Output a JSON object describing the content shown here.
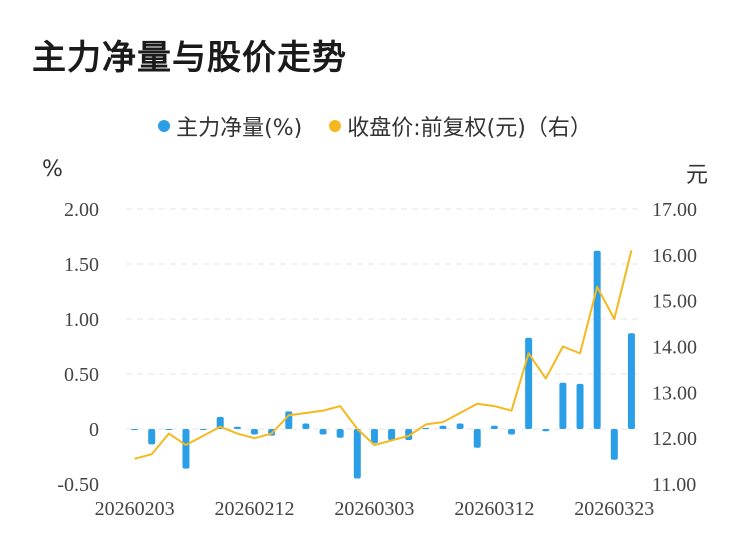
{
  "title": "主力净量与股价走势",
  "colors": {
    "bar": "#2b9ee8",
    "line": "#f5b81e",
    "grid": "#e4e4e4"
  },
  "chart_data": {
    "type": "bar+line",
    "legend": [
      {
        "name": "主力净量(%)",
        "color": "#2b9ee8",
        "marker": "dot"
      },
      {
        "name": "收盘价:前复权(元)（右）",
        "color": "#f5b81e",
        "marker": "dot"
      }
    ],
    "y_left_unit": "%",
    "y_right_unit": "元",
    "y_left": {
      "ticks": [
        "2.00",
        "1.50",
        "1.00",
        "0.50",
        "0",
        "-0.50"
      ],
      "range": [
        -0.5,
        2.0
      ]
    },
    "y_right": {
      "ticks": [
        "17.00",
        "16.00",
        "15.00",
        "14.00",
        "13.00",
        "12.00",
        "11.00"
      ],
      "range": [
        11.0,
        17.0
      ]
    },
    "x_ticks": [
      "20260203",
      "20260212",
      "20260303",
      "20260312",
      "20260323"
    ],
    "x_tick_index": [
      0,
      7,
      14,
      21,
      28
    ],
    "categories": [
      "d1",
      "d2",
      "d3",
      "d4",
      "d5",
      "d6",
      "d7",
      "d8",
      "d9",
      "d10",
      "d11",
      "d12",
      "d13",
      "d14",
      "d15",
      "d16",
      "d17",
      "d18",
      "d19",
      "d20",
      "d21",
      "d22",
      "d23",
      "d24",
      "d25",
      "d26",
      "d27",
      "d28",
      "d29",
      "d30"
    ],
    "series": [
      {
        "name": "主力净量(%)",
        "kind": "bar",
        "values": [
          -0.01,
          -0.14,
          0.0,
          -0.36,
          0.0,
          0.11,
          0.02,
          -0.05,
          -0.06,
          0.16,
          0.05,
          -0.05,
          -0.08,
          -0.45,
          -0.13,
          -0.1,
          -0.1,
          0.01,
          0.03,
          0.05,
          -0.17,
          0.03,
          -0.05,
          0.83,
          -0.02,
          0.42,
          0.41,
          1.62,
          -0.28,
          0.87
        ]
      },
      {
        "name": "收盘价:前复权(元)（右）",
        "kind": "line",
        "values": [
          11.55,
          11.65,
          12.1,
          11.85,
          12.05,
          12.25,
          12.1,
          12.0,
          12.1,
          12.5,
          12.55,
          12.6,
          12.7,
          12.2,
          11.85,
          11.95,
          12.05,
          12.3,
          12.35,
          12.55,
          12.75,
          12.7,
          12.6,
          13.85,
          13.3,
          14.0,
          13.85,
          15.3,
          14.6,
          16.1
        ]
      }
    ]
  }
}
